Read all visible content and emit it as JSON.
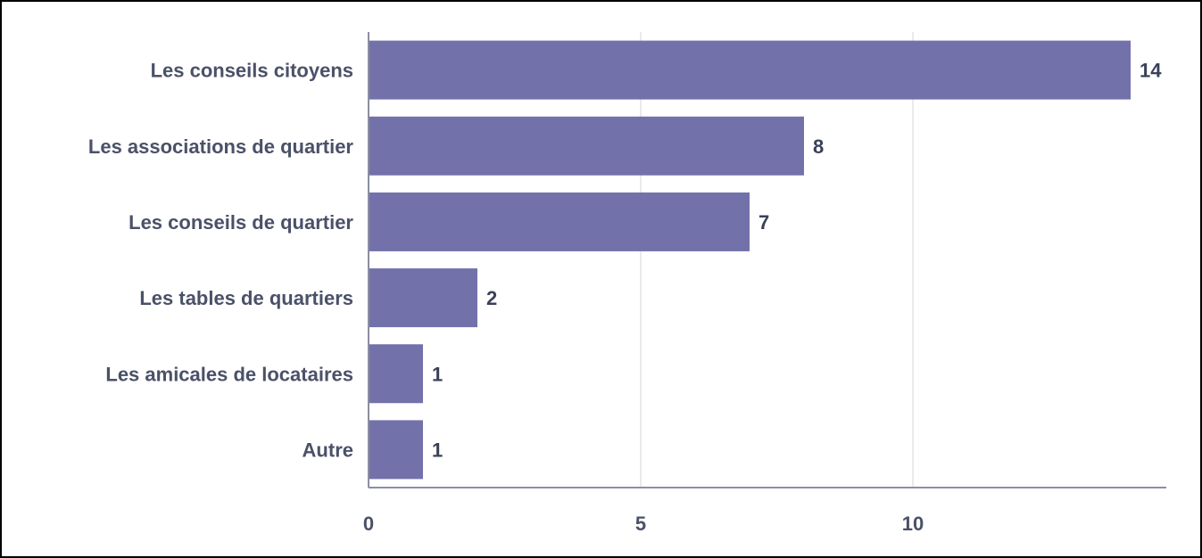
{
  "chart_data": {
    "type": "bar",
    "orientation": "horizontal",
    "categories": [
      "Les conseils citoyens",
      "Les associations de quartier",
      "Les conseils de quartier",
      "Les tables de quartiers",
      "Les amicales de locataires",
      "Autre"
    ],
    "values": [
      14,
      8,
      7,
      2,
      1,
      1
    ],
    "xticks": [
      "0",
      "5",
      "10"
    ],
    "xlim": [
      0,
      14.7
    ],
    "title": "",
    "xlabel": "",
    "ylabel": "",
    "grid": true,
    "bar_color": "#7371aa",
    "axis_color": "#8a8fa0",
    "grid_color": "#e4e4e8"
  }
}
